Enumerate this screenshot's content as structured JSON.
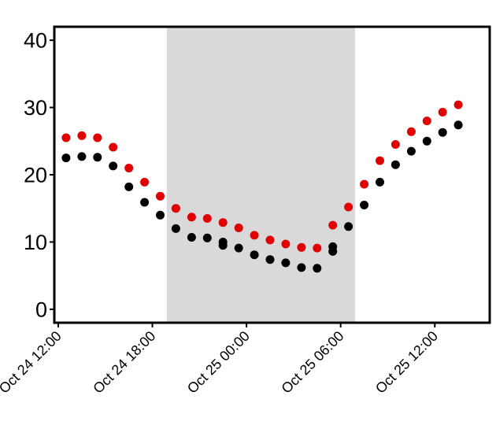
{
  "chart_data": {
    "type": "scatter",
    "title": "",
    "xlabel": "",
    "ylabel": "",
    "ylim": [
      -2,
      42
    ],
    "xlim": [
      "Oct 24 11:45",
      "Oct 25 15:30"
    ],
    "y_ticks": [
      0,
      10,
      20,
      30,
      40
    ],
    "x_ticks": [
      {
        "time": "Oct 24 12:00",
        "label": "Oct 24 12:00"
      },
      {
        "time": "Oct 24 18:00",
        "label": "Oct 24 18:00"
      },
      {
        "time": "Oct 25 00:00",
        "label": "Oct 25 00:00"
      },
      {
        "time": "Oct 25 06:00",
        "label": "Oct 25 06:00"
      },
      {
        "time": "Oct 25 12:00",
        "label": "Oct 25 12:00"
      }
    ],
    "grid": false,
    "legend": "none",
    "shaded_region": {
      "start": "Oct 24 18:55",
      "end": "Oct 25 06:55",
      "color": "#d9d9d9"
    },
    "series": [
      {
        "color": "#e00000",
        "points": [
          {
            "x": "Oct 24 12:30",
            "y": 25.5
          },
          {
            "x": "Oct 24 13:30",
            "y": 25.8
          },
          {
            "x": "Oct 24 14:30",
            "y": 25.5
          },
          {
            "x": "Oct 24 15:30",
            "y": 24.1
          },
          {
            "x": "Oct 24 16:30",
            "y": 21.0
          },
          {
            "x": "Oct 24 17:30",
            "y": 18.9
          },
          {
            "x": "Oct 24 18:30",
            "y": 16.8
          },
          {
            "x": "Oct 24 19:30",
            "y": 15.0
          },
          {
            "x": "Oct 24 20:30",
            "y": 13.7
          },
          {
            "x": "Oct 24 21:30",
            "y": 13.5
          },
          {
            "x": "Oct 24 22:30",
            "y": 12.9
          },
          {
            "x": "Oct 24 23:30",
            "y": 12.1
          },
          {
            "x": "Oct 25 00:30",
            "y": 11.0
          },
          {
            "x": "Oct 25 01:30",
            "y": 10.3
          },
          {
            "x": "Oct 25 02:30",
            "y": 9.7
          },
          {
            "x": "Oct 25 03:30",
            "y": 9.2
          },
          {
            "x": "Oct 25 04:30",
            "y": 9.1
          },
          {
            "x": "Oct 25 05:30",
            "y": 12.5
          },
          {
            "x": "Oct 25 06:30",
            "y": 15.2
          },
          {
            "x": "Oct 25 07:30",
            "y": 18.6
          },
          {
            "x": "Oct 25 08:30",
            "y": 22.1
          },
          {
            "x": "Oct 25 09:30",
            "y": 24.5
          },
          {
            "x": "Oct 25 10:30",
            "y": 26.4
          },
          {
            "x": "Oct 25 11:30",
            "y": 28.0
          },
          {
            "x": "Oct 25 12:30",
            "y": 29.3
          },
          {
            "x": "Oct 25 13:30",
            "y": 30.4
          }
        ]
      },
      {
        "color": "#000000",
        "points": [
          {
            "x": "Oct 24 12:30",
            "y": 22.5
          },
          {
            "x": "Oct 24 13:30",
            "y": 22.7
          },
          {
            "x": "Oct 24 14:30",
            "y": 22.6
          },
          {
            "x": "Oct 24 15:30",
            "y": 21.3
          },
          {
            "x": "Oct 24 16:30",
            "y": 18.2
          },
          {
            "x": "Oct 24 17:30",
            "y": 15.9
          },
          {
            "x": "Oct 24 18:30",
            "y": 14.0
          },
          {
            "x": "Oct 24 19:30",
            "y": 12.0
          },
          {
            "x": "Oct 24 20:30",
            "y": 10.7
          },
          {
            "x": "Oct 24 21:30",
            "y": 10.6
          },
          {
            "x": "Oct 24 22:30",
            "y": 10.0
          },
          {
            "x": "Oct 24 22:30",
            "y": 9.5
          },
          {
            "x": "Oct 24 23:30",
            "y": 9.1
          },
          {
            "x": "Oct 25 00:30",
            "y": 8.1
          },
          {
            "x": "Oct 25 01:30",
            "y": 7.4
          },
          {
            "x": "Oct 25 02:30",
            "y": 6.9
          },
          {
            "x": "Oct 25 03:30",
            "y": 6.2
          },
          {
            "x": "Oct 25 04:30",
            "y": 6.1
          },
          {
            "x": "Oct 25 05:30",
            "y": 9.3
          },
          {
            "x": "Oct 25 05:30",
            "y": 8.6
          },
          {
            "x": "Oct 25 06:30",
            "y": 12.3
          },
          {
            "x": "Oct 25 07:30",
            "y": 15.5
          },
          {
            "x": "Oct 25 08:30",
            "y": 18.9
          },
          {
            "x": "Oct 25 09:30",
            "y": 21.5
          },
          {
            "x": "Oct 25 10:30",
            "y": 23.5
          },
          {
            "x": "Oct 25 11:30",
            "y": 25.0
          },
          {
            "x": "Oct 25 12:30",
            "y": 26.3
          },
          {
            "x": "Oct 25 13:30",
            "y": 27.4
          }
        ]
      }
    ]
  }
}
